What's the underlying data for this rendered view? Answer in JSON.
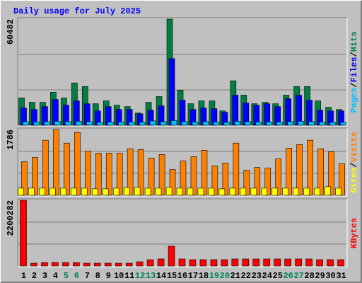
{
  "title": "Daily usage for July 2025",
  "chart_data": [
    {
      "type": "bar",
      "ylim": [
        0,
        60482
      ],
      "yticks": [
        60482
      ],
      "grid_divisions": 3,
      "legend_separator": "/",
      "series": [
        {
          "name": "Hits",
          "color": "#008040",
          "values": [
            15531,
            13078,
            13078,
            18800,
            15531,
            24113,
            22070,
            12261,
            13896,
            11444,
            10626,
            6948,
            13078,
            16348,
            60482,
            20026,
            12261,
            13896,
            13896,
            8174,
            25339,
            17165,
            12261,
            13078,
            12261,
            17165,
            22070,
            22070,
            13896,
            10218,
            8991
          ]
        },
        {
          "name": "Files",
          "color": "#0000ff",
          "values": [
            9809,
            8991,
            10626,
            14713,
            11444,
            13896,
            12261,
            8174,
            10626,
            8991,
            8991,
            6539,
            8583,
            11035,
            38009,
            14305,
            8991,
            9809,
            9400,
            7357,
            17165,
            12670,
            11444,
            12261,
            10626,
            15122,
            17165,
            14305,
            8583,
            8174,
            8174
          ]
        },
        {
          "name": "Pages",
          "color": "#00c0ff",
          "values": [
            2043,
            1839,
            2043,
            2248,
            2043,
            2248,
            2043,
            1635,
            1839,
            1839,
            1839,
            1635,
            2452,
            2043,
            2657,
            2043,
            1839,
            2043,
            1839,
            1635,
            2248,
            2043,
            1839,
            1839,
            1839,
            2043,
            2248,
            2043,
            1839,
            1635,
            1635
          ]
        }
      ]
    },
    {
      "type": "bar",
      "ylim": [
        0,
        1786
      ],
      "yticks": [
        1786
      ],
      "grid_divisions": 3,
      "legend_separator": "/",
      "series": [
        {
          "name": "Visits",
          "color": "#ff8000",
          "values": [
            912,
            1029,
            1495,
            1786,
            1417,
            1708,
            1203,
            1145,
            1145,
            1145,
            1262,
            1242,
            1009,
            1106,
            699,
            932,
            1048,
            1223,
            796,
            873,
            1417,
            679,
            757,
            738,
            990,
            1281,
            1378,
            1495,
            1262,
            1184,
            854
          ]
        },
        {
          "name": "Sites",
          "color": "#ffff00",
          "values": [
            194,
            194,
            194,
            194,
            194,
            194,
            194,
            175,
            175,
            194,
            213,
            213,
            194,
            194,
            213,
            194,
            194,
            194,
            194,
            175,
            194,
            194,
            194,
            194,
            194,
            194,
            194,
            194,
            194,
            233,
            194
          ]
        }
      ]
    },
    {
      "type": "bar",
      "ylim": [
        0,
        2200282
      ],
      "yticks": [
        2200282
      ],
      "grid_divisions": 3,
      "categories": [
        "1",
        "2",
        "3",
        "4",
        "5",
        "6",
        "7",
        "8",
        "9",
        "10",
        "11",
        "12",
        "13",
        "14",
        "15",
        "16",
        "17",
        "18",
        "19",
        "20",
        "21",
        "22",
        "23",
        "24",
        "25",
        "26",
        "27",
        "28",
        "29",
        "30",
        "31"
      ],
      "category_colors": [
        "#000000",
        "#000000",
        "#000000",
        "#000000",
        "#00805c",
        "#00805c",
        "#000000",
        "#000000",
        "#000000",
        "#000000",
        "#000000",
        "#00805c",
        "#00805c",
        "#000000",
        "#000000",
        "#000000",
        "#000000",
        "#000000",
        "#00805c",
        "#00805c",
        "#000000",
        "#000000",
        "#000000",
        "#000000",
        "#000000",
        "#00805c",
        "#00805c",
        "#000000",
        "#000000",
        "#000000",
        "#000000"
      ],
      "series": [
        {
          "name": "KBytes",
          "color": "#ff0000",
          "values": [
            2200282,
            94636,
            118295,
            118295,
            118295,
            118295,
            94636,
            94636,
            94636,
            94636,
            94636,
            141954,
            212931,
            236590,
            662452,
            236590,
            212931,
            212931,
            212931,
            212931,
            236590,
            236590,
            236590,
            236590,
            236590,
            236590,
            236590,
            236590,
            212931,
            212931,
            212931
          ]
        }
      ]
    }
  ]
}
